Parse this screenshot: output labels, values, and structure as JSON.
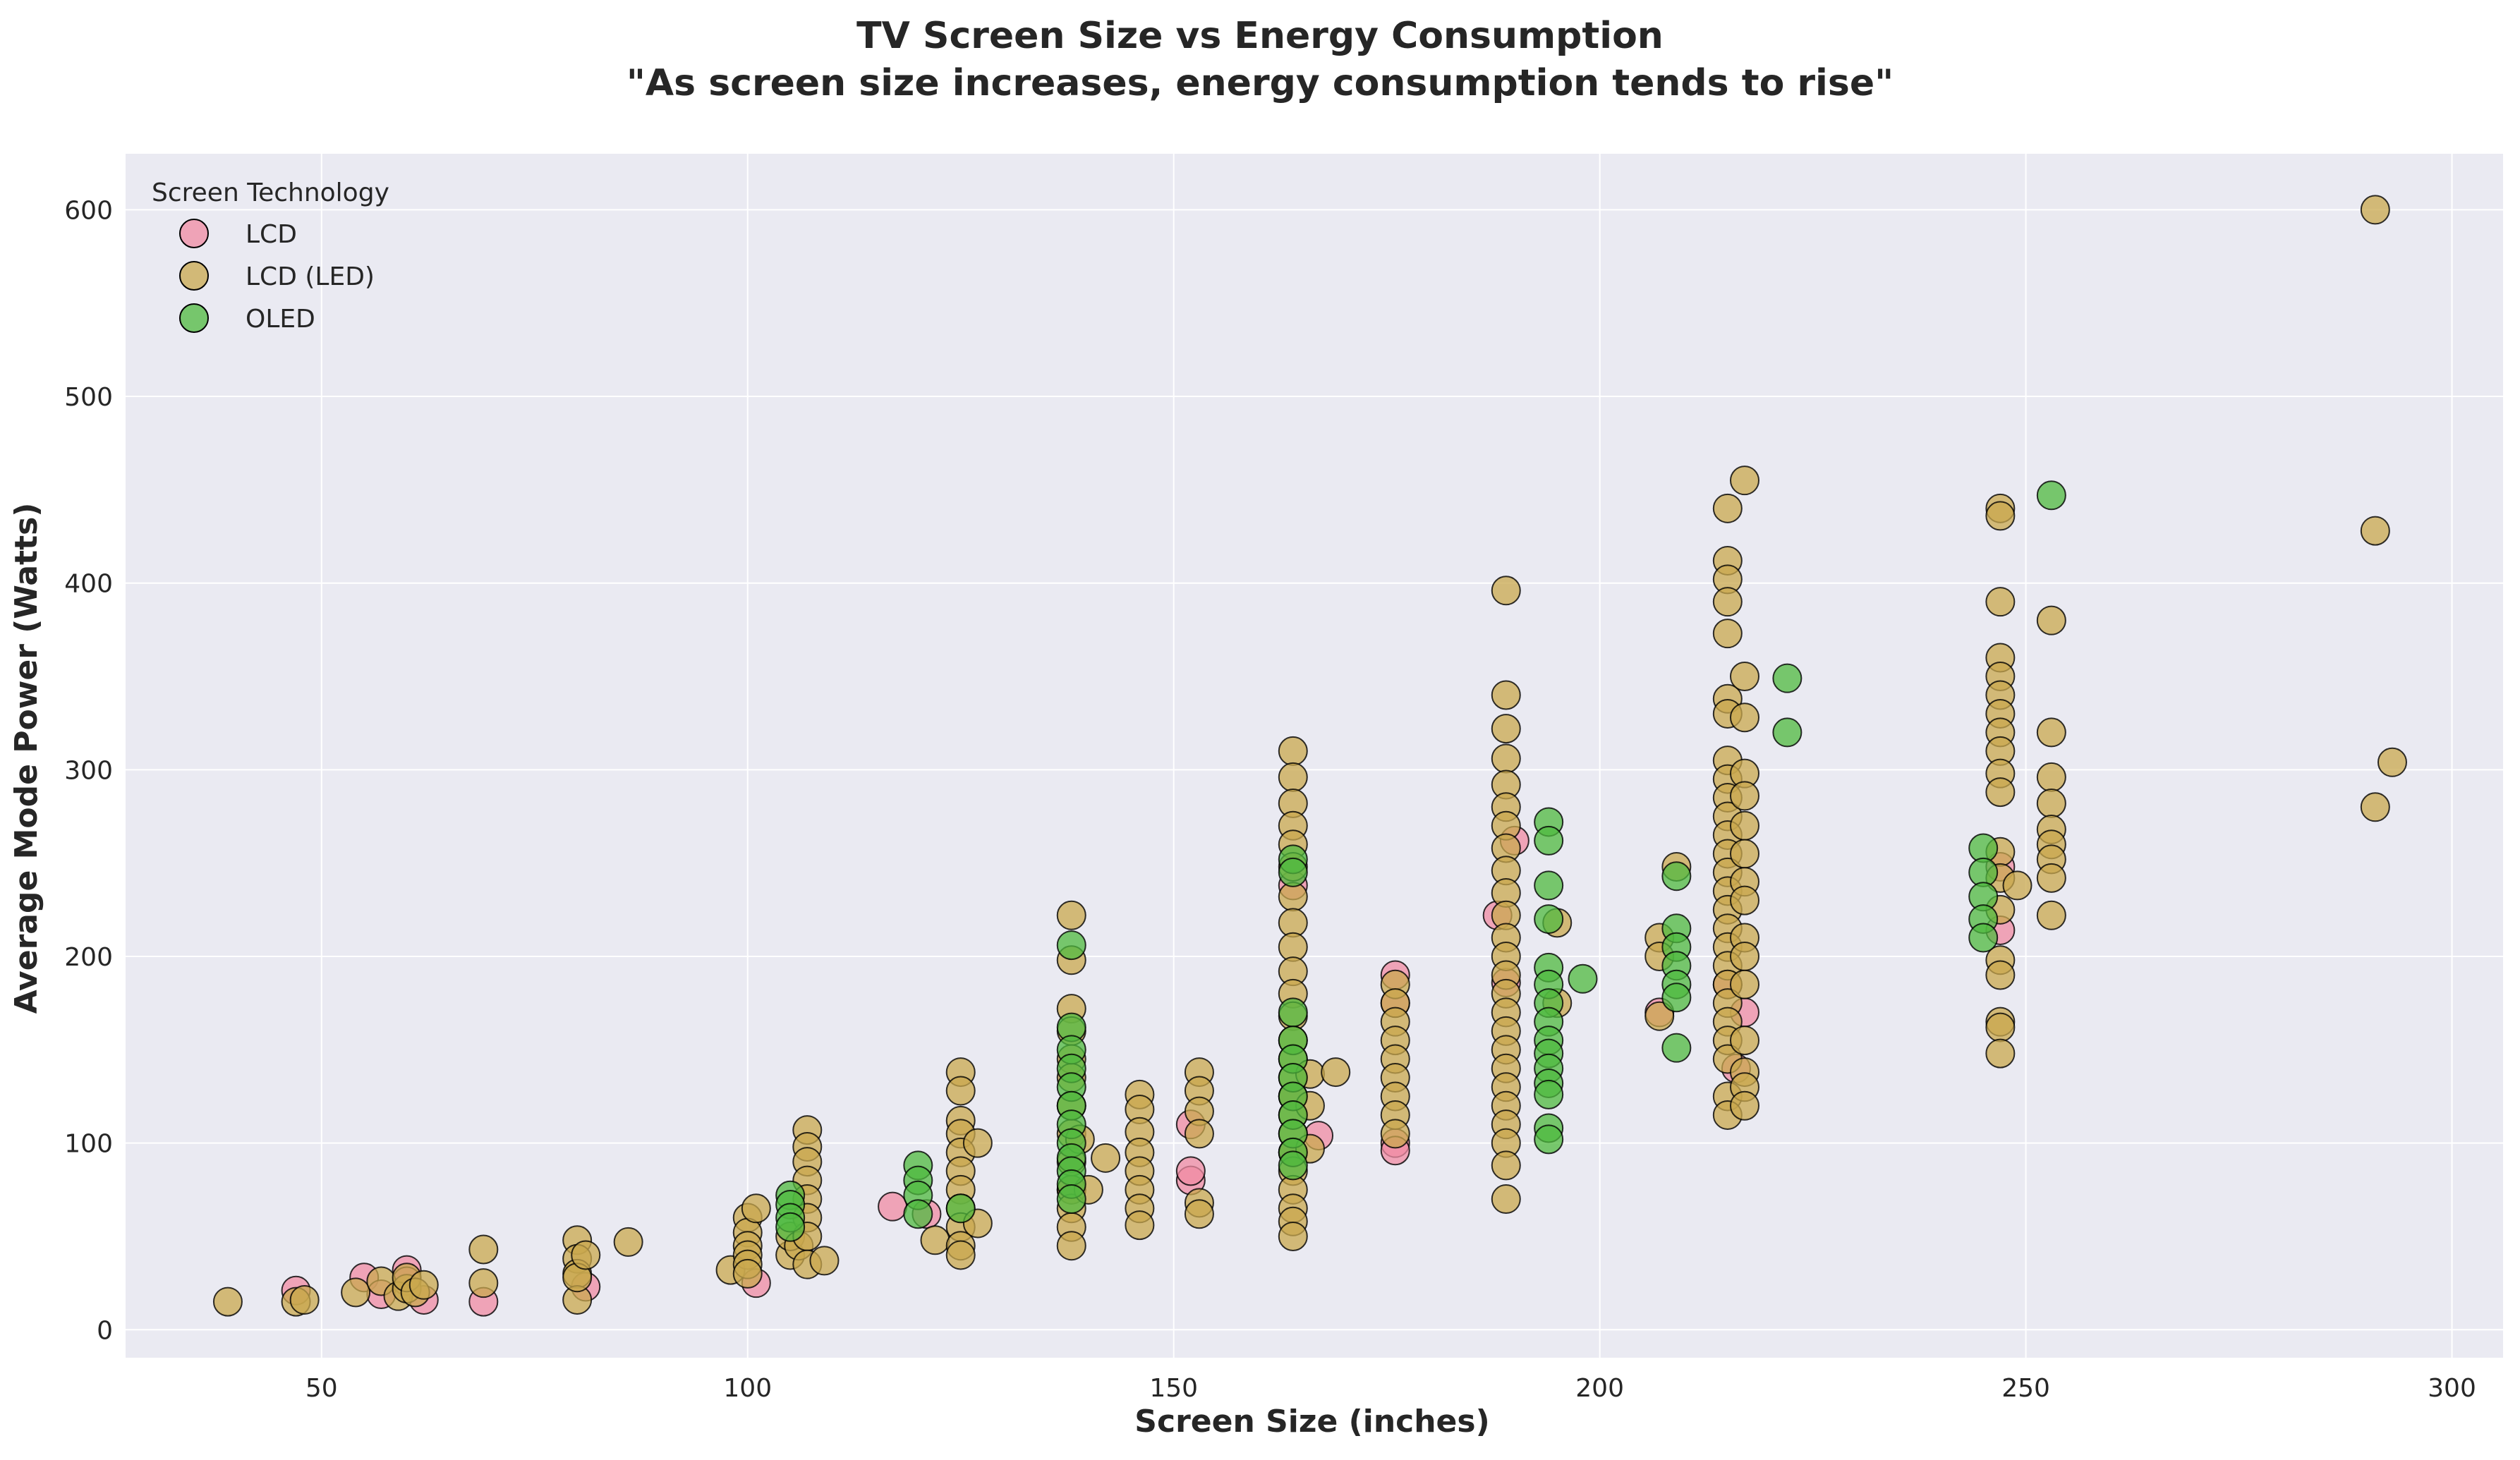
{
  "chart_data": {
    "type": "scatter",
    "title": "TV Screen Size vs Energy Consumption",
    "subtitle": "\"As screen size increases, energy consumption tends to rise\"",
    "xlabel": "Screen Size (inches)",
    "ylabel": "Average Mode Power (Watts)",
    "xlim": [
      27,
      306
    ],
    "ylim": [
      -15,
      630
    ],
    "xticks": [
      50,
      100,
      150,
      200,
      250,
      300
    ],
    "yticks": [
      0,
      100,
      200,
      300,
      400,
      500,
      600
    ],
    "grid": true,
    "legend": {
      "title": "Screen Technology",
      "position": "top-left"
    },
    "series": [
      {
        "name": "LCD",
        "color": "#f08ba3",
        "points": [
          [
            47,
            21
          ],
          [
            55,
            28
          ],
          [
            57,
            19
          ],
          [
            60,
            32
          ],
          [
            60,
            26
          ],
          [
            62,
            16
          ],
          [
            69,
            15
          ],
          [
            81,
            23
          ],
          [
            101,
            25
          ],
          [
            117,
            66
          ],
          [
            121,
            62
          ],
          [
            138,
            75
          ],
          [
            152,
            80
          ],
          [
            152,
            85
          ],
          [
            152,
            110
          ],
          [
            164,
            125
          ],
          [
            164,
            95
          ],
          [
            164,
            238
          ],
          [
            167,
            104
          ],
          [
            176,
            100
          ],
          [
            176,
            96
          ],
          [
            176,
            190
          ],
          [
            176,
            175
          ],
          [
            188,
            222
          ],
          [
            189,
            186
          ],
          [
            190,
            262
          ],
          [
            207,
            170
          ],
          [
            215,
            185
          ],
          [
            216,
            140
          ],
          [
            217,
            170
          ],
          [
            247,
            214
          ],
          [
            247,
            248
          ]
        ]
      },
      {
        "name": "LCD (LED)",
        "color": "#c9a84d",
        "points": [
          [
            39,
            15
          ],
          [
            47,
            15
          ],
          [
            48,
            16
          ],
          [
            54,
            20
          ],
          [
            57,
            26
          ],
          [
            59,
            18
          ],
          [
            60,
            22
          ],
          [
            60,
            28
          ],
          [
            61,
            20
          ],
          [
            62,
            24
          ],
          [
            69,
            43
          ],
          [
            69,
            25
          ],
          [
            80,
            48
          ],
          [
            80,
            38
          ],
          [
            80,
            30
          ],
          [
            80,
            16
          ],
          [
            80,
            28
          ],
          [
            81,
            40
          ],
          [
            86,
            47
          ],
          [
            98,
            32
          ],
          [
            100,
            60
          ],
          [
            100,
            52
          ],
          [
            100,
            45
          ],
          [
            100,
            40
          ],
          [
            100,
            35
          ],
          [
            100,
            30
          ],
          [
            101,
            65
          ],
          [
            105,
            40
          ],
          [
            105,
            50
          ],
          [
            106,
            45
          ],
          [
            107,
            107
          ],
          [
            107,
            98
          ],
          [
            107,
            90
          ],
          [
            107,
            80
          ],
          [
            107,
            70
          ],
          [
            107,
            60
          ],
          [
            107,
            50
          ],
          [
            107,
            35
          ],
          [
            109,
            37
          ],
          [
            122,
            48
          ],
          [
            125,
            138
          ],
          [
            125,
            128
          ],
          [
            125,
            112
          ],
          [
            125,
            105
          ],
          [
            125,
            95
          ],
          [
            125,
            85
          ],
          [
            125,
            75
          ],
          [
            125,
            65
          ],
          [
            125,
            55
          ],
          [
            125,
            45
          ],
          [
            125,
            40
          ],
          [
            127,
            100
          ],
          [
            127,
            57
          ],
          [
            138,
            222
          ],
          [
            138,
            198
          ],
          [
            138,
            172
          ],
          [
            138,
            160
          ],
          [
            138,
            145
          ],
          [
            138,
            135
          ],
          [
            138,
            120
          ],
          [
            138,
            105
          ],
          [
            138,
            90
          ],
          [
            138,
            75
          ],
          [
            138,
            65
          ],
          [
            138,
            55
          ],
          [
            138,
            45
          ],
          [
            139,
            102
          ],
          [
            140,
            75
          ],
          [
            142,
            92
          ],
          [
            146,
            126
          ],
          [
            146,
            118
          ],
          [
            146,
            106
          ],
          [
            146,
            95
          ],
          [
            146,
            85
          ],
          [
            146,
            75
          ],
          [
            146,
            65
          ],
          [
            146,
            56
          ],
          [
            153,
            138
          ],
          [
            153,
            128
          ],
          [
            153,
            117
          ],
          [
            153,
            105
          ],
          [
            153,
            68
          ],
          [
            153,
            62
          ],
          [
            164,
            310
          ],
          [
            164,
            296
          ],
          [
            164,
            282
          ],
          [
            164,
            270
          ],
          [
            164,
            260
          ],
          [
            164,
            248
          ],
          [
            164,
            232
          ],
          [
            164,
            218
          ],
          [
            164,
            205
          ],
          [
            164,
            192
          ],
          [
            164,
            180
          ],
          [
            164,
            168
          ],
          [
            164,
            155
          ],
          [
            164,
            145
          ],
          [
            164,
            135
          ],
          [
            164,
            125
          ],
          [
            164,
            115
          ],
          [
            164,
            105
          ],
          [
            164,
            95
          ],
          [
            164,
            85
          ],
          [
            164,
            75
          ],
          [
            164,
            65
          ],
          [
            164,
            58
          ],
          [
            164,
            50
          ],
          [
            166,
            137
          ],
          [
            166,
            120
          ],
          [
            166,
            97
          ],
          [
            169,
            138
          ],
          [
            176,
            185
          ],
          [
            176,
            175
          ],
          [
            176,
            165
          ],
          [
            176,
            155
          ],
          [
            176,
            145
          ],
          [
            176,
            135
          ],
          [
            176,
            125
          ],
          [
            176,
            115
          ],
          [
            176,
            105
          ],
          [
            189,
            396
          ],
          [
            189,
            340
          ],
          [
            189,
            322
          ],
          [
            189,
            306
          ],
          [
            189,
            292
          ],
          [
            189,
            280
          ],
          [
            189,
            270
          ],
          [
            189,
            258
          ],
          [
            189,
            246
          ],
          [
            189,
            234
          ],
          [
            189,
            222
          ],
          [
            189,
            210
          ],
          [
            189,
            200
          ],
          [
            189,
            190
          ],
          [
            189,
            180
          ],
          [
            189,
            170
          ],
          [
            189,
            160
          ],
          [
            189,
            150
          ],
          [
            189,
            140
          ],
          [
            189,
            130
          ],
          [
            189,
            120
          ],
          [
            189,
            110
          ],
          [
            189,
            100
          ],
          [
            189,
            88
          ],
          [
            189,
            70
          ],
          [
            195,
            218
          ],
          [
            195,
            175
          ],
          [
            207,
            210
          ],
          [
            207,
            200
          ],
          [
            207,
            168
          ],
          [
            209,
            248
          ],
          [
            215,
            440
          ],
          [
            215,
            412
          ],
          [
            215,
            402
          ],
          [
            215,
            390
          ],
          [
            215,
            373
          ],
          [
            215,
            338
          ],
          [
            215,
            330
          ],
          [
            215,
            305
          ],
          [
            215,
            295
          ],
          [
            215,
            285
          ],
          [
            215,
            275
          ],
          [
            215,
            265
          ],
          [
            215,
            255
          ],
          [
            215,
            245
          ],
          [
            215,
            235
          ],
          [
            215,
            225
          ],
          [
            215,
            215
          ],
          [
            215,
            205
          ],
          [
            215,
            195
          ],
          [
            215,
            185
          ],
          [
            215,
            175
          ],
          [
            215,
            165
          ],
          [
            215,
            155
          ],
          [
            215,
            145
          ],
          [
            215,
            125
          ],
          [
            215,
            115
          ],
          [
            217,
            455
          ],
          [
            217,
            350
          ],
          [
            217,
            328
          ],
          [
            217,
            298
          ],
          [
            217,
            286
          ],
          [
            217,
            270
          ],
          [
            217,
            255
          ],
          [
            217,
            240
          ],
          [
            217,
            230
          ],
          [
            217,
            210
          ],
          [
            217,
            200
          ],
          [
            217,
            185
          ],
          [
            217,
            155
          ],
          [
            217,
            138
          ],
          [
            217,
            130
          ],
          [
            217,
            120
          ],
          [
            247,
            440
          ],
          [
            247,
            436
          ],
          [
            247,
            390
          ],
          [
            247,
            360
          ],
          [
            247,
            350
          ],
          [
            247,
            340
          ],
          [
            247,
            330
          ],
          [
            247,
            320
          ],
          [
            247,
            310
          ],
          [
            247,
            298
          ],
          [
            247,
            288
          ],
          [
            247,
            256
          ],
          [
            247,
            242
          ],
          [
            247,
            225
          ],
          [
            247,
            198
          ],
          [
            247,
            190
          ],
          [
            247,
            165
          ],
          [
            247,
            162
          ],
          [
            247,
            148
          ],
          [
            249,
            238
          ],
          [
            253,
            380
          ],
          [
            253,
            320
          ],
          [
            253,
            296
          ],
          [
            253,
            282
          ],
          [
            253,
            268
          ],
          [
            253,
            260
          ],
          [
            253,
            252
          ],
          [
            253,
            242
          ],
          [
            253,
            222
          ],
          [
            291,
            600
          ],
          [
            291,
            428
          ],
          [
            291,
            280
          ],
          [
            293,
            304
          ]
        ]
      },
      {
        "name": "OLED",
        "color": "#4fb93f",
        "points": [
          [
            105,
            72
          ],
          [
            105,
            67
          ],
          [
            105,
            60
          ],
          [
            105,
            55
          ],
          [
            120,
            88
          ],
          [
            120,
            80
          ],
          [
            120,
            72
          ],
          [
            120,
            62
          ],
          [
            125,
            65
          ],
          [
            138,
            206
          ],
          [
            138,
            162
          ],
          [
            138,
            150
          ],
          [
            138,
            140
          ],
          [
            138,
            130
          ],
          [
            138,
            120
          ],
          [
            138,
            110
          ],
          [
            138,
            100
          ],
          [
            138,
            92
          ],
          [
            138,
            85
          ],
          [
            138,
            78
          ],
          [
            138,
            70
          ],
          [
            164,
            252
          ],
          [
            164,
            245
          ],
          [
            164,
            170
          ],
          [
            164,
            155
          ],
          [
            164,
            145
          ],
          [
            164,
            135
          ],
          [
            164,
            125
          ],
          [
            164,
            115
          ],
          [
            164,
            105
          ],
          [
            164,
            95
          ],
          [
            164,
            88
          ],
          [
            194,
            272
          ],
          [
            194,
            262
          ],
          [
            194,
            238
          ],
          [
            194,
            220
          ],
          [
            194,
            194
          ],
          [
            194,
            185
          ],
          [
            194,
            175
          ],
          [
            194,
            165
          ],
          [
            194,
            155
          ],
          [
            194,
            148
          ],
          [
            194,
            140
          ],
          [
            194,
            132
          ],
          [
            194,
            126
          ],
          [
            194,
            108
          ],
          [
            194,
            102
          ],
          [
            198,
            188
          ],
          [
            209,
            243
          ],
          [
            209,
            215
          ],
          [
            209,
            205
          ],
          [
            209,
            195
          ],
          [
            209,
            185
          ],
          [
            209,
            178
          ],
          [
            209,
            151
          ],
          [
            222,
            349
          ],
          [
            222,
            320
          ],
          [
            245,
            258
          ],
          [
            245,
            245
          ],
          [
            245,
            232
          ],
          [
            245,
            220
          ],
          [
            245,
            210
          ],
          [
            253,
            447
          ]
        ]
      }
    ]
  }
}
